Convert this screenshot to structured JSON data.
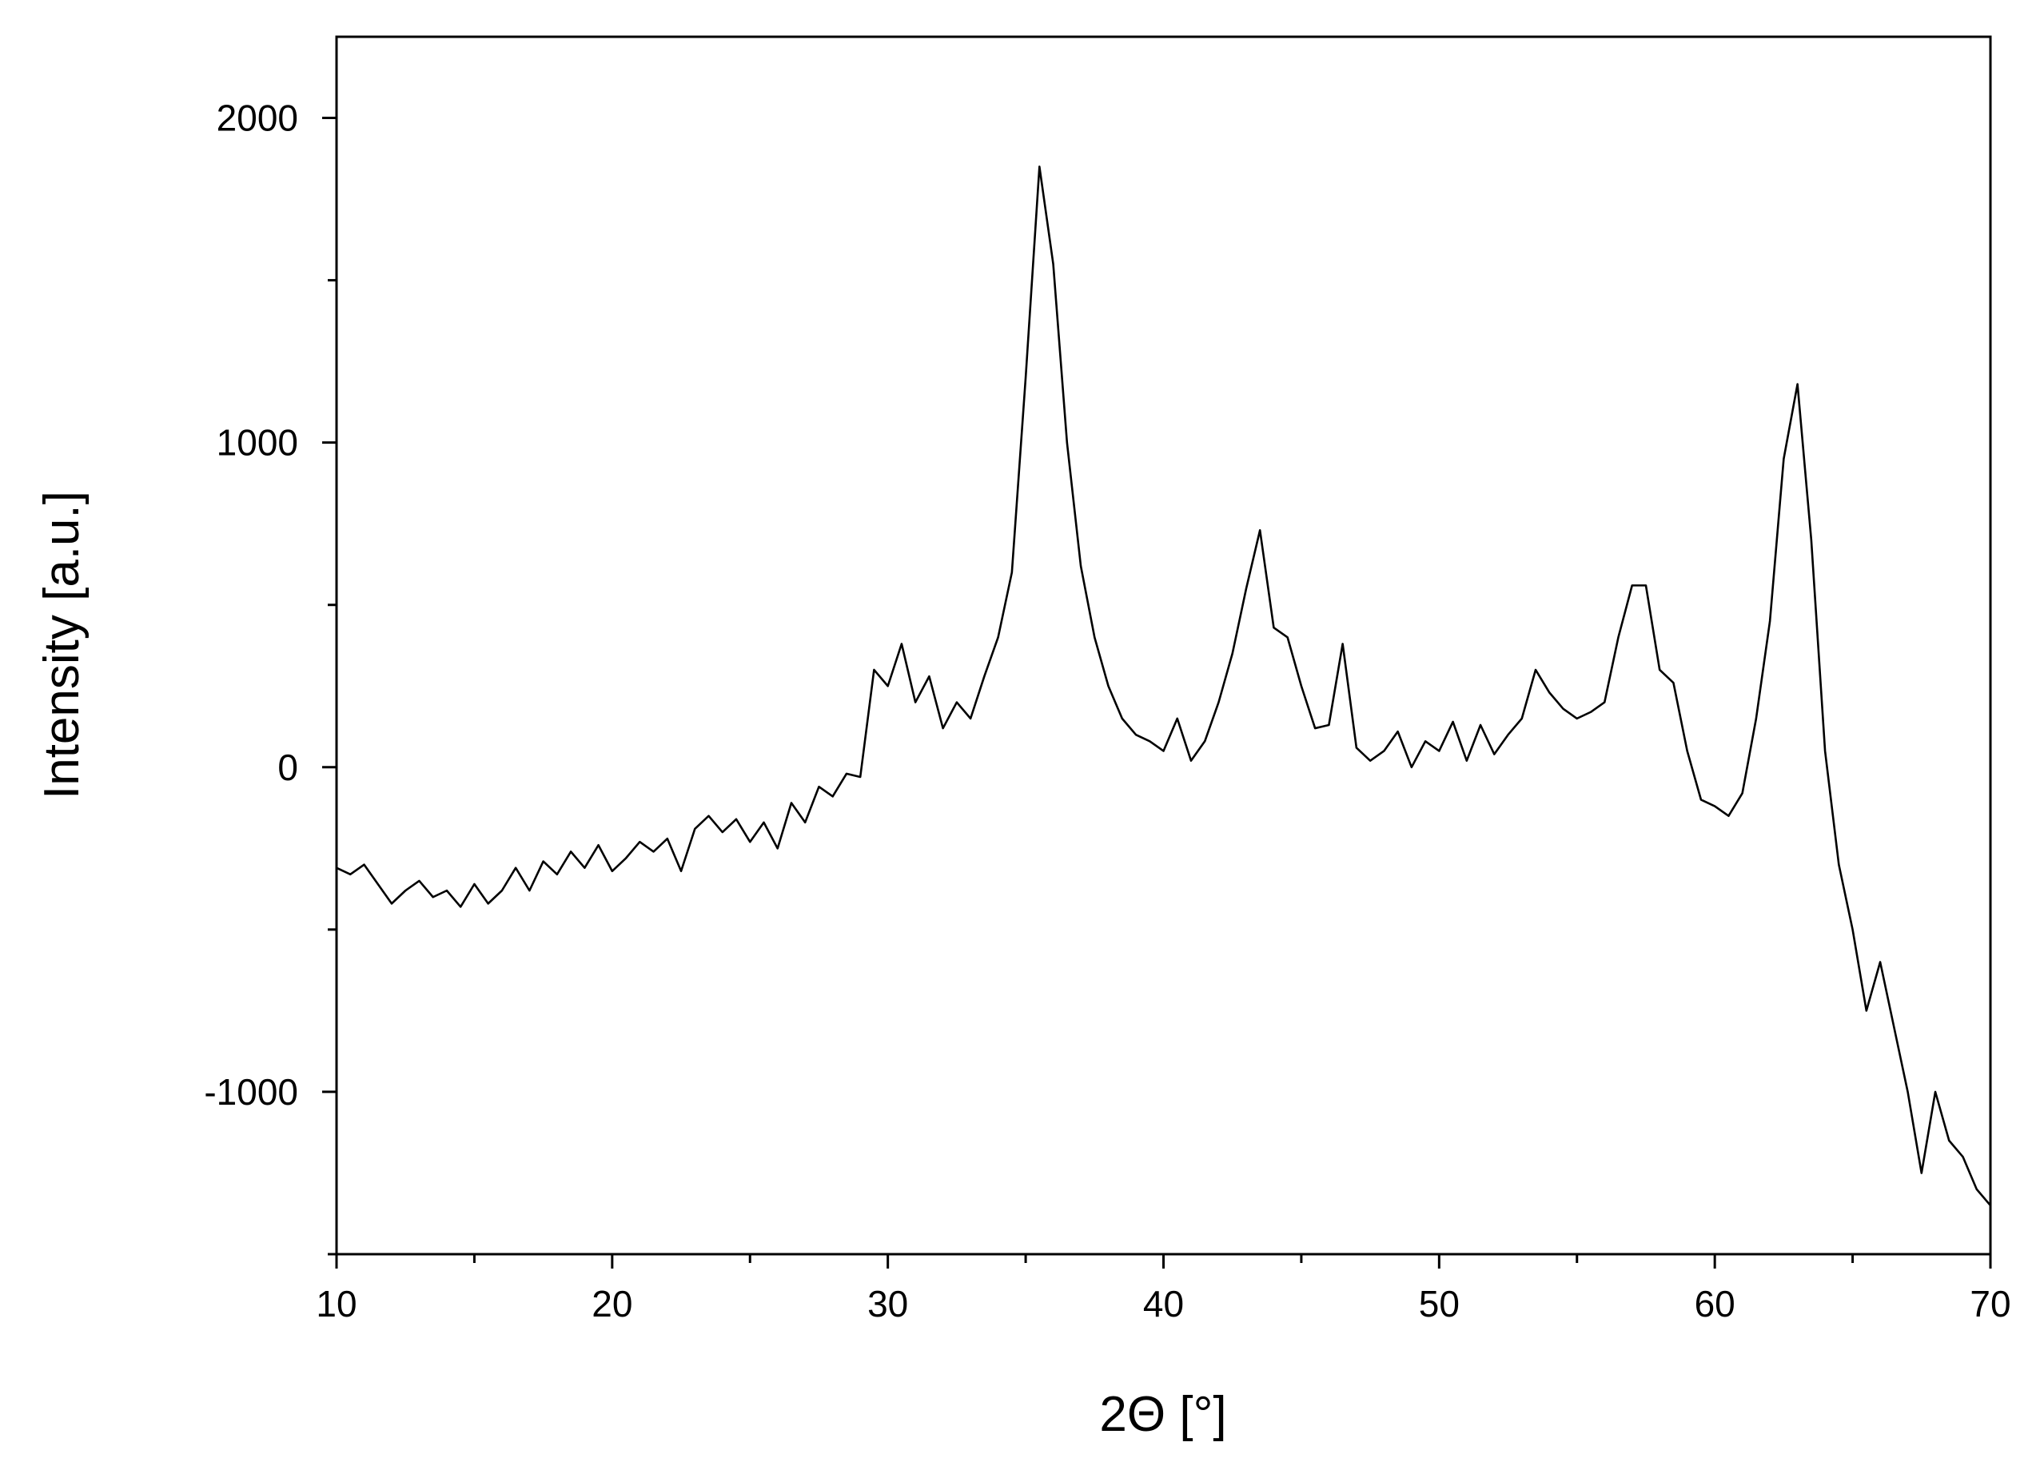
{
  "chart_data": {
    "type": "line",
    "x_label": "2Θ [°]",
    "y_label": "Intensity [a.u.]",
    "xlim": [
      10,
      70
    ],
    "ylim": [
      -1500,
      2250
    ],
    "xticks": [
      10,
      20,
      30,
      40,
      50,
      60,
      70
    ],
    "yticks": [
      -1000,
      0,
      1000,
      2000
    ],
    "xminorticks": [
      15,
      25,
      35,
      45,
      55,
      65
    ],
    "yminorticks": [
      -1500,
      -500,
      500,
      1500
    ],
    "grid": false,
    "x": [
      10,
      10.5,
      11,
      11.5,
      12,
      12.5,
      13,
      13.5,
      14,
      14.5,
      15,
      15.5,
      16,
      16.5,
      17,
      17.5,
      18,
      18.5,
      19,
      19.5,
      20,
      20.5,
      21,
      21.5,
      22,
      22.5,
      23,
      23.5,
      24,
      24.5,
      25,
      25.5,
      26,
      26.5,
      27,
      27.5,
      28,
      28.5,
      29,
      29.5,
      30,
      30.5,
      31,
      31.5,
      32,
      32.5,
      33,
      33.5,
      34,
      34.5,
      35,
      35.5,
      36,
      36.5,
      37,
      37.5,
      38,
      38.5,
      39,
      39.5,
      40,
      40.5,
      41,
      41.5,
      42,
      42.5,
      43,
      43.5,
      44,
      44.5,
      45,
      45.5,
      46,
      46.5,
      47,
      47.5,
      48,
      48.5,
      49,
      49.5,
      50,
      50.5,
      51,
      51.5,
      52,
      52.5,
      53,
      53.5,
      54,
      54.5,
      55,
      55.5,
      56,
      56.5,
      57,
      57.5,
      58,
      58.5,
      59,
      59.5,
      60,
      60.5,
      61,
      61.5,
      62,
      62.5,
      63,
      63.5,
      64,
      64.5,
      65,
      65.5,
      66,
      66.5,
      67,
      67.5,
      68,
      68.5,
      69,
      69.5,
      70
    ],
    "series": [
      {
        "color": "#000000",
        "values": [
          -310,
          -330,
          -300,
          -360,
          -420,
          -380,
          -350,
          -400,
          -380,
          -430,
          -360,
          -420,
          -380,
          -310,
          -380,
          -290,
          -330,
          -260,
          -310,
          -240,
          -320,
          -280,
          -230,
          -260,
          -220,
          -320,
          -190,
          -150,
          -200,
          -160,
          -230,
          -170,
          -250,
          -110,
          -170,
          -60,
          -90,
          -20,
          -30,
          300,
          250,
          380,
          200,
          280,
          120,
          200,
          150,
          280,
          400,
          600,
          1200,
          1850,
          1550,
          1000,
          620,
          400,
          250,
          150,
          100,
          80,
          50,
          150,
          20,
          80,
          200,
          350,
          550,
          730,
          430,
          400,
          250,
          120,
          130,
          380,
          60,
          20,
          50,
          110,
          0,
          80,
          50,
          140,
          20,
          130,
          40,
          100,
          150,
          300,
          230,
          180,
          150,
          170,
          200,
          400,
          560,
          560,
          300,
          260,
          50,
          -100,
          -120,
          -150,
          -80,
          150,
          450,
          950,
          1180,
          700,
          50,
          -300,
          -500,
          -750,
          -600,
          -800,
          -1000,
          -1250,
          -1000,
          -1150,
          -1200,
          -1300,
          -1350
        ]
      }
    ]
  }
}
